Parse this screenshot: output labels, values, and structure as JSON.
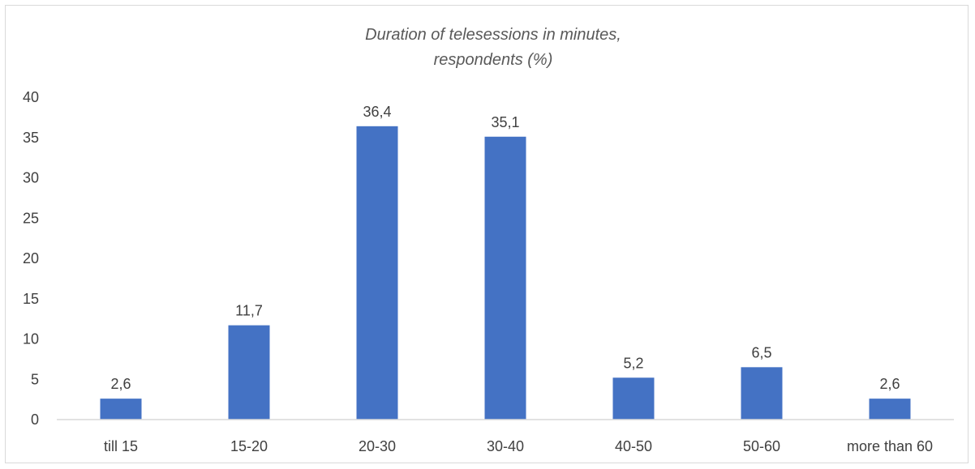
{
  "chart_data": {
    "type": "bar",
    "title_lines": [
      "Duration of telesessions in minutes,",
      "respondents (%)"
    ],
    "categories": [
      "till 15",
      "15-20",
      "20-30",
      "30-40",
      "40-50",
      "50-60",
      "more than 60"
    ],
    "values": [
      2.6,
      11.7,
      36.4,
      35.1,
      5.2,
      6.5,
      2.6
    ],
    "data_labels": [
      "2,6",
      "11,7",
      "36,4",
      "35,1",
      "5,2",
      "6,5",
      "2,6"
    ],
    "y_ticks": [
      "0",
      "5",
      "10",
      "15",
      "20",
      "25",
      "30",
      "35",
      "40"
    ],
    "ylim": [
      0,
      40
    ],
    "xlabel": "",
    "ylabel": "",
    "grid": false,
    "legend": "none",
    "bar_color": "#4472c4"
  }
}
